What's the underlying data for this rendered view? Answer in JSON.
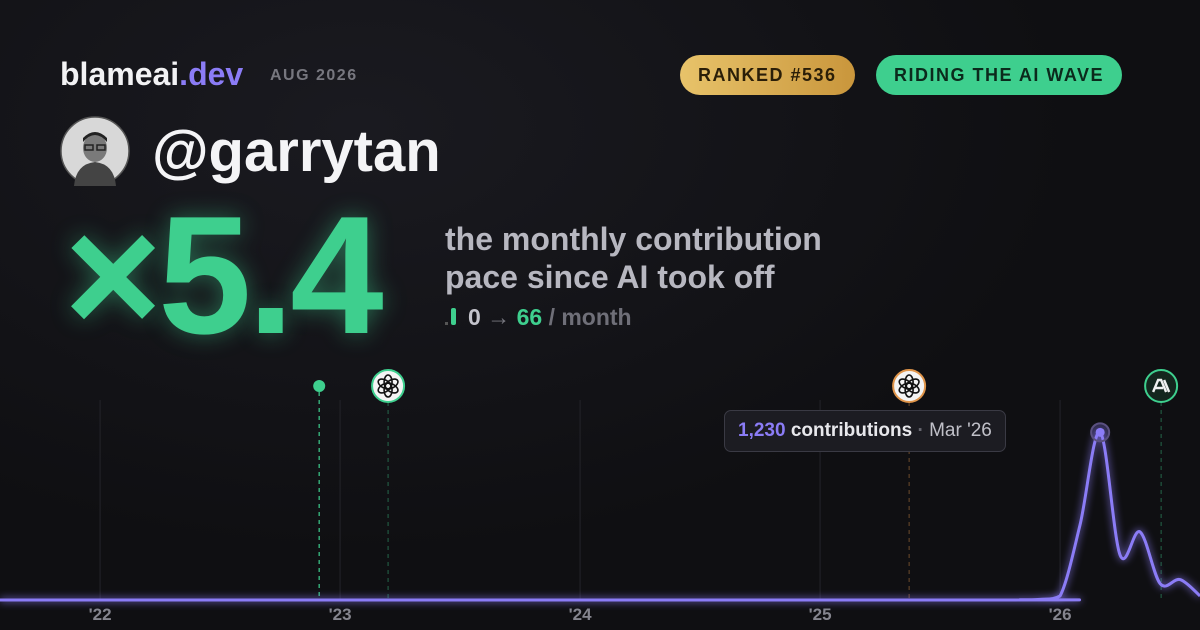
{
  "header": {
    "brand": "blameai",
    "brand_suffix": ".dev",
    "period": "AUG 2026",
    "badges": [
      "RANKED #536",
      "RIDING THE AI WAVE"
    ],
    "handle": "@garrytan"
  },
  "hero": {
    "multiplier": "×5.4",
    "caption_lines": [
      "the monthly contribution",
      "pace since AI took off"
    ],
    "from": "0",
    "arrow": "→",
    "to": "66",
    "unit": "/ month"
  },
  "chart_data": {
    "type": "line",
    "x": [
      2021.583,
      2025.75,
      2025.833,
      2025.917,
      2026.0,
      2026.083,
      2026.167,
      2026.25,
      2026.333,
      2026.417,
      2026.5,
      2026.583
    ],
    "series": [
      {
        "name": "contributions",
        "color": "#8b7cf6",
        "values": [
          0,
          0,
          2,
          5,
          30,
          550,
          1230,
          330,
          500,
          120,
          150,
          30
        ]
      }
    ],
    "xlim": [
      2021.583,
      2026.583
    ],
    "ylim": [
      0,
      1350
    ],
    "xticks": [
      {
        "value": 2022,
        "label": "'22"
      },
      {
        "value": 2023,
        "label": "'23"
      },
      {
        "value": 2024,
        "label": "'24"
      },
      {
        "value": 2025,
        "label": "'25"
      },
      {
        "value": 2026,
        "label": "'26"
      }
    ],
    "grid": true,
    "events": [
      {
        "x": 2022.913,
        "color": "#3ecf8e"
      },
      {
        "x": 2023.2,
        "color": "#3ecf8e"
      },
      {
        "x": 2025.371,
        "color": "#e0954a"
      },
      {
        "x": 2026.421,
        "color": "#3ecf8e"
      }
    ],
    "tooltip": {
      "value": "1,230",
      "label": "contributions",
      "separator": "·",
      "date": "Mar '26"
    }
  }
}
